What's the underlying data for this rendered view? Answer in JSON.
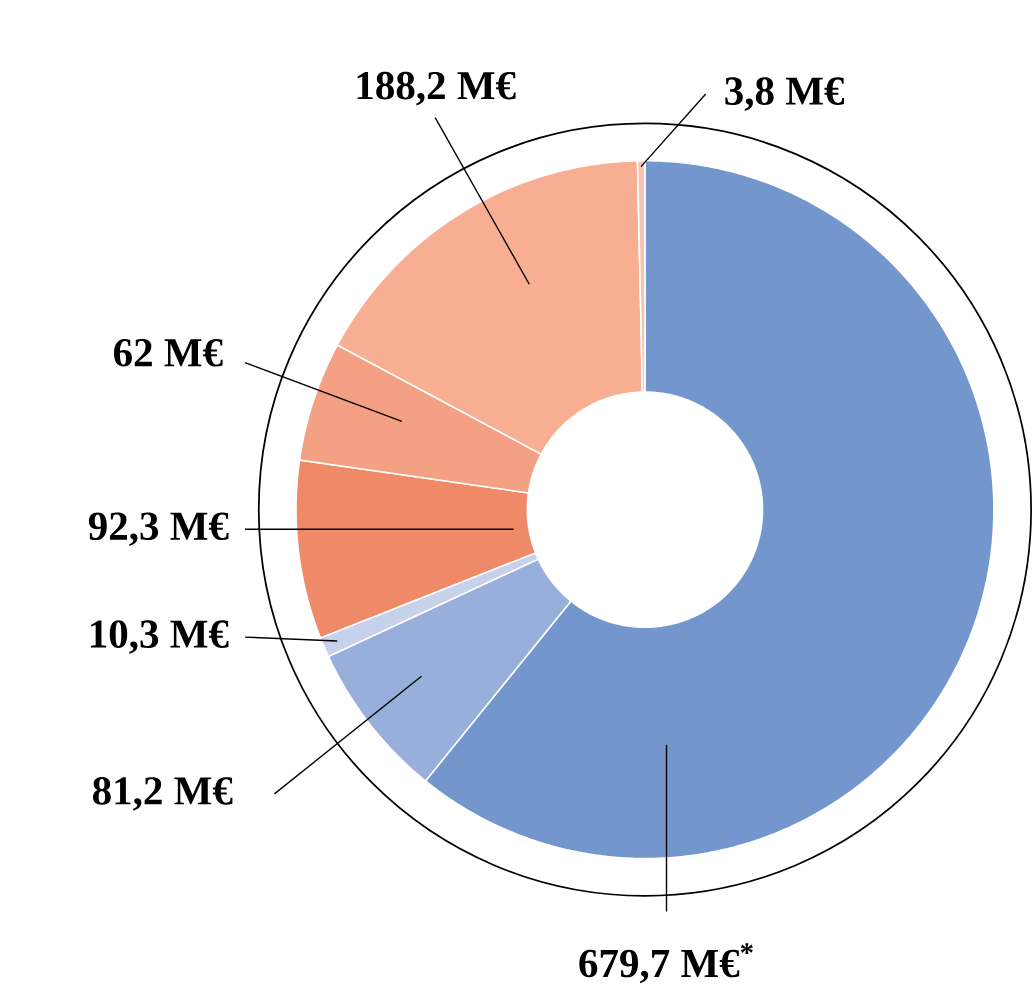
{
  "chart_data": {
    "type": "donut",
    "categories": [
      null,
      null,
      null,
      null,
      null,
      null,
      null
    ],
    "values": [
      679.7,
      81.2,
      10.3,
      92.3,
      62,
      188.2,
      3.8
    ],
    "colors": [
      "#7396cd",
      "#98afdc",
      "#c6d1ec",
      "#ef8a68",
      "#f3a084",
      "#f7ae93",
      "#f5c4b2"
    ],
    "value_labels": [
      "679,7 M€$^{*}$",
      "81,2 M€",
      "10,3 M€",
      "92,3 M€",
      "62 M€",
      "188,2 M€",
      "3,8 M€"
    ],
    "legend": false
  }
}
